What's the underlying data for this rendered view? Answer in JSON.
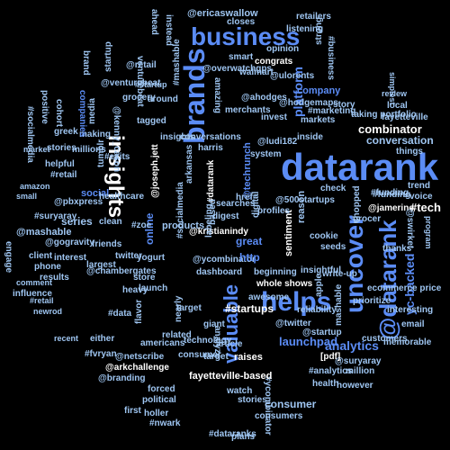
{
  "colors": {
    "background": "#000000",
    "white": "#ffffff",
    "light_blue": "#9fc6f2",
    "blue": "#5b8cf5",
    "mid_blue": "#4a73e0",
    "steel_blue": "#6f96c9"
  },
  "words": [
    {
      "text": "datarank",
      "color": "blue"
    },
    {
      "text": "brands",
      "color": "blue"
    },
    {
      "text": "business",
      "color": "blue"
    },
    {
      "text": "insights",
      "color": "white"
    },
    {
      "text": "uncover",
      "color": "blue"
    },
    {
      "text": "helps",
      "color": "blue"
    },
    {
      "text": "@datarank",
      "color": "blue"
    },
    {
      "text": "valuable",
      "color": "blue"
    },
    {
      "text": "analytics",
      "color": "blue"
    },
    {
      "text": "launchpad",
      "color": "blue"
    },
    {
      "text": "combinator",
      "color": "white"
    },
    {
      "text": "conversation",
      "color": "light_blue"
    },
    {
      "text": "yc-backed",
      "color": "blue"
    },
    {
      "text": "platform",
      "color": "blue"
    },
    {
      "text": "company",
      "color": "blue"
    },
    {
      "text": "social",
      "color": "blue"
    },
    {
      "text": "series",
      "color": "light_blue"
    },
    {
      "text": "@mashable",
      "color": "light_blue"
    },
    {
      "text": "#tech",
      "color": "white"
    },
    {
      "text": "@jamerine",
      "color": "white"
    },
    {
      "text": "#funding",
      "color": "light_blue"
    },
    {
      "text": "consumer",
      "color": "light_blue"
    },
    {
      "text": "#ycombinator",
      "color": "light_blue"
    },
    {
      "text": "#analytics",
      "color": "light_blue"
    },
    {
      "text": "health",
      "color": "light_blue"
    },
    {
      "text": "@ericaswallow",
      "color": "light_blue"
    },
    {
      "text": "retailers",
      "color": "light_blue"
    },
    {
      "text": "closes",
      "color": "light_blue"
    },
    {
      "text": "listening",
      "color": "light_blue"
    },
    {
      "text": "story",
      "color": "light_blue"
    },
    {
      "text": "simplest",
      "color": "light_blue"
    },
    {
      "text": "local",
      "color": "light_blue"
    },
    {
      "text": "review",
      "color": "light_blue"
    },
    {
      "text": "fayetteville",
      "color": "light_blue"
    },
    {
      "text": "things",
      "color": "light_blue"
    },
    {
      "text": "trend",
      "color": "light_blue"
    },
    {
      "text": "voice",
      "color": "light_blue"
    },
    {
      "text": "program",
      "color": "light_blue"
    },
    {
      "text": "#startups",
      "color": "white"
    },
    {
      "text": "startup",
      "color": "light_blue"
    },
    {
      "text": "#startup",
      "color": "light_blue"
    },
    {
      "text": "@venturebeat",
      "color": "light_blue"
    },
    {
      "text": "venturebeat",
      "color": "light_blue"
    },
    {
      "text": "greek",
      "color": "light_blue"
    },
    {
      "text": "making",
      "color": "light_blue"
    },
    {
      "text": "millions",
      "color": "light_blue"
    },
    {
      "text": "companies",
      "color": "blue"
    },
    {
      "text": "healthcare",
      "color": "light_blue"
    },
    {
      "text": "@pbxpress",
      "color": "light_blue"
    },
    {
      "text": "#suryaray",
      "color": "light_blue"
    },
    {
      "text": "@gogravity",
      "color": "light_blue"
    },
    {
      "text": "market",
      "color": "light_blue"
    },
    {
      "text": "amazon",
      "color": "light_blue"
    },
    {
      "text": "small",
      "color": "light_blue"
    },
    {
      "text": "influence",
      "color": "light_blue"
    },
    {
      "text": "comment",
      "color": "light_blue"
    },
    {
      "text": "#retail",
      "color": "light_blue"
    },
    {
      "text": "newrod",
      "color": "light_blue"
    },
    {
      "text": "recent",
      "color": "light_blue"
    },
    {
      "text": "first",
      "color": "light_blue"
    },
    {
      "text": "#fvryan",
      "color": "light_blue"
    },
    {
      "text": "@netscribe",
      "color": "light_blue"
    },
    {
      "text": "@arkchallenge",
      "color": "white"
    },
    {
      "text": "@branding",
      "color": "light_blue"
    },
    {
      "text": "#nwark",
      "color": "light_blue"
    },
    {
      "text": "forced",
      "color": "light_blue"
    },
    {
      "text": "political",
      "color": "light_blue"
    },
    {
      "text": "holler",
      "color": "light_blue"
    },
    {
      "text": "americans",
      "color": "light_blue"
    },
    {
      "text": "consumers",
      "color": "light_blue"
    },
    {
      "text": "fayetteville-based",
      "color": "white"
    },
    {
      "text": "#dataranks",
      "color": "light_blue"
    },
    {
      "text": "plans",
      "color": "light_blue"
    },
    {
      "text": "raises",
      "color": "white"
    },
    {
      "text": "sentiment",
      "color": "white"
    },
    {
      "text": "@suryaray",
      "color": "light_blue"
    },
    {
      "text": "million",
      "color": "light_blue"
    },
    {
      "text": "however",
      "color": "light_blue"
    },
    {
      "text": "email",
      "color": "light_blue"
    },
    {
      "text": "memorable",
      "color": "light_blue"
    },
    {
      "text": "customers",
      "color": "light_blue"
    },
    {
      "text": "prioritize",
      "color": "light_blue"
    },
    {
      "text": "thanks",
      "color": "light_blue"
    },
    {
      "text": "@startup",
      "color": "light_blue"
    },
    {
      "text": "@techrunch",
      "color": "blue"
    },
    {
      "text": "@kristianindy",
      "color": "white"
    },
    {
      "text": "dashboard",
      "color": "light_blue"
    },
    {
      "text": "beginning",
      "color": "light_blue"
    },
    {
      "text": "awesome",
      "color": "light_blue"
    },
    {
      "text": "whole shows",
      "color": "white"
    },
    {
      "text": "@ycombinator",
      "color": "light_blue"
    },
    {
      "text": "products",
      "color": "light_blue"
    },
    {
      "text": "online",
      "color": "blue"
    },
    {
      "text": "#socialmedia",
      "color": "light_blue"
    },
    {
      "text": "#datarank",
      "color": "white"
    },
    {
      "text": "great",
      "color": "blue"
    },
    {
      "text": "@ludi182",
      "color": "light_blue"
    },
    {
      "text": "system",
      "color": "light_blue"
    },
    {
      "text": "#marketing",
      "color": "light_blue"
    },
    {
      "text": "markets",
      "color": "light_blue"
    },
    {
      "text": "taking portfolio",
      "color": "light_blue"
    },
    {
      "text": "@joseph.jett",
      "color": "white"
    },
    {
      "text": "tumblr",
      "color": "light_blue"
    },
    {
      "text": "media",
      "color": "light_blue"
    },
    {
      "text": "grocery",
      "color": "light_blue"
    },
    {
      "text": "@kenny_cason",
      "color": "light_blue"
    },
    {
      "text": "#exits",
      "color": "light_blue"
    },
    {
      "text": "#business",
      "color": "light_blue"
    },
    {
      "text": "strong",
      "color": "light_blue"
    },
    {
      "text": "congrats",
      "color": "white"
    },
    {
      "text": "smart",
      "color": "light_blue"
    },
    {
      "text": "@overwatchgps",
      "color": "light_blue"
    },
    {
      "text": "conversations",
      "color": "light_blue"
    },
    {
      "text": "harris",
      "color": "light_blue"
    },
    {
      "text": "@ulorents",
      "color": "light_blue"
    },
    {
      "text": "friends",
      "color": "light_blue"
    },
    {
      "text": "interest",
      "color": "light_blue"
    },
    {
      "text": "phone",
      "color": "light_blue"
    },
    {
      "text": "results",
      "color": "light_blue"
    },
    {
      "text": "client",
      "color": "light_blue"
    },
    {
      "text": "largest",
      "color": "light_blue"
    },
    {
      "text": "store",
      "color": "light_blue"
    },
    {
      "text": "heavy",
      "color": "light_blue"
    },
    {
      "text": "launch",
      "color": "light_blue"
    },
    {
      "text": "yogurt",
      "color": "light_blue"
    },
    {
      "text": "@chambergates",
      "color": "light_blue"
    },
    {
      "text": "#zoe",
      "color": "light_blue"
    },
    {
      "text": "http",
      "color": "blue"
    },
    {
      "text": "href=",
      "color": "light_blue"
    },
    {
      "text": "check",
      "color": "light_blue"
    },
    {
      "text": "digital",
      "color": "light_blue"
    },
    {
      "text": "profiles",
      "color": "light_blue"
    },
    {
      "text": "@500startups",
      "color": "light_blue"
    },
    {
      "text": "chopped",
      "color": "light_blue"
    },
    {
      "text": "#funding",
      "color": "light_blue"
    },
    {
      "text": "grocer",
      "color": "light_blue"
    },
    {
      "text": "@swirket",
      "color": "light_blue"
    },
    {
      "text": "mashable",
      "color": "light_blue"
    },
    {
      "text": "ecommerce price",
      "color": "light_blue"
    },
    {
      "text": "@twitter",
      "color": "light_blue"
    },
    {
      "text": "apple",
      "color": "light_blue"
    },
    {
      "text": "insightful",
      "color": "light_blue"
    },
    {
      "text": "consumer",
      "color": "light_blue"
    },
    {
      "text": "target",
      "color": "light_blue"
    },
    {
      "text": "insights",
      "color": "light_blue"
    },
    {
      "text": "#mashable",
      "color": "light_blue"
    },
    {
      "text": "walmart",
      "color": "light_blue"
    },
    {
      "text": "amazing",
      "color": "light_blue"
    },
    {
      "text": "opinion",
      "color": "light_blue"
    },
    {
      "text": "@ahodges",
      "color": "light_blue"
    },
    {
      "text": "@hodgemaps",
      "color": "light_blue"
    },
    {
      "text": "merchants",
      "color": "light_blue"
    },
    {
      "text": "invest",
      "color": "light_blue"
    },
    {
      "text": "@retail",
      "color": "light_blue"
    },
    {
      "text": "ahead",
      "color": "light_blue"
    },
    {
      "text": "instead",
      "color": "light_blue"
    },
    {
      "text": "brand",
      "color": "light_blue"
    },
    {
      "text": "around",
      "color": "light_blue"
    },
    {
      "text": "tagged",
      "color": "light_blue"
    },
    {
      "text": "cohort",
      "color": "light_blue"
    },
    {
      "text": "#socialmedia",
      "color": "light_blue"
    },
    {
      "text": "positive",
      "color": "light_blue"
    },
    {
      "text": "stories",
      "color": "light_blue"
    },
    {
      "text": "helpful",
      "color": "light_blue"
    },
    {
      "text": "engage",
      "color": "light_blue"
    },
    {
      "text": "#retail",
      "color": "light_blue"
    },
    {
      "text": "twitter",
      "color": "light_blue"
    },
    {
      "text": "clean",
      "color": "light_blue"
    },
    {
      "text": "inside",
      "color": "light_blue"
    },
    {
      "text": "based",
      "color": "light_blue"
    },
    {
      "text": "arkansas",
      "color": "light_blue"
    },
    {
      "text": "labeling",
      "color": "light_blue"
    },
    {
      "text": "digest",
      "color": "light_blue"
    },
    {
      "text": "searches",
      "color": "light_blue"
    },
    {
      "text": "nearly",
      "color": "light_blue"
    },
    {
      "text": "related",
      "color": "light_blue"
    },
    {
      "text": "technology",
      "color": "light_blue"
    },
    {
      "text": "giant",
      "color": "light_blue"
    },
    {
      "text": "analyze",
      "color": "light_blue"
    },
    {
      "text": "article",
      "color": "light_blue"
    },
    {
      "text": "either",
      "color": "light_blue"
    },
    {
      "text": "target",
      "color": "light_blue"
    },
    {
      "text": "watch",
      "color": "light_blue"
    },
    {
      "text": "flavor",
      "color": "light_blue"
    },
    {
      "text": "#data",
      "color": "light_blue"
    },
    {
      "text": "reason",
      "color": "light_blue"
    },
    {
      "text": "write-up",
      "color": "light_blue"
    },
    {
      "text": "seeds",
      "color": "light_blue"
    },
    {
      "text": "cookie",
      "color": "light_blue"
    },
    {
      "text": "[pdf]",
      "color": "white"
    },
    {
      "text": "reliability",
      "color": "light_blue"
    },
    {
      "text": "stories",
      "color": "light_blue"
    },
    {
      "text": "interesting",
      "color": "light_blue"
    },
    {
      "text": "@tcwlm",
      "color": "light_blue"
    },
    {
      "text": "listen",
      "color": "light_blue"
    },
    {
      "text": "@mashable",
      "color": "light_blue"
    },
    {
      "text": "amz",
      "color": "light_blue"
    }
  ]
}
